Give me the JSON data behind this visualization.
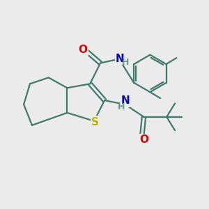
{
  "bg_color": "#ebebeb",
  "bond_color": "#3d7a6a",
  "S_color": "#b8b800",
  "N_color": "#0000cc",
  "O_color": "#dd0000",
  "line_width": 1.6,
  "font_size": 10,
  "xlim": [
    0,
    10
  ],
  "ylim": [
    0,
    10
  ]
}
